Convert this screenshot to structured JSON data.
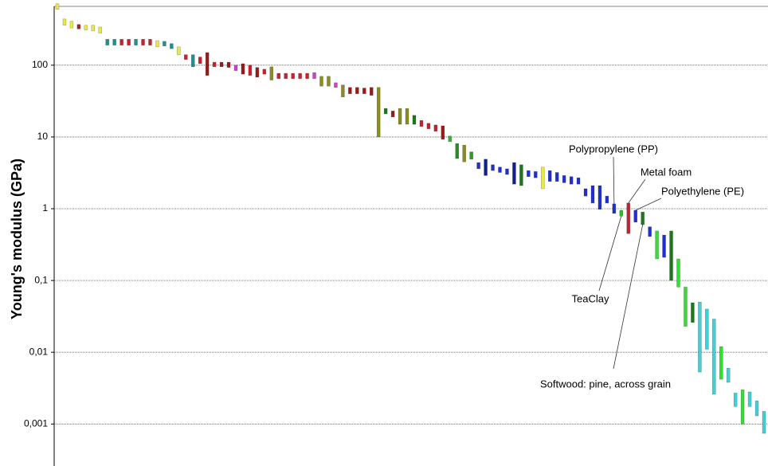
{
  "chart_data": {
    "type": "range_bar",
    "ylabel": "Young's modulus (GPa)",
    "log_y": true,
    "grid": true,
    "ylim": [
      0.00026,
      660
    ],
    "yticks": [
      {
        "value": 0.001,
        "label": "0,001"
      },
      {
        "value": 0.01,
        "label": "0,01"
      },
      {
        "value": 0.1,
        "label": "0,1"
      },
      1,
      10,
      100
    ],
    "bars": [
      {
        "low": 600,
        "high": 720,
        "color": "#e8e84a"
      },
      {
        "low": 360,
        "high": 440,
        "color": "#e8e84a"
      },
      {
        "low": 330,
        "high": 410,
        "color": "#e8e84a"
      },
      {
        "low": 320,
        "high": 370,
        "color": "#b01c24"
      },
      {
        "low": 310,
        "high": 360,
        "color": "#e8e84a"
      },
      {
        "low": 300,
        "high": 360,
        "color": "#e8e84a"
      },
      {
        "low": 280,
        "high": 340,
        "color": "#e8e84a"
      },
      {
        "low": 190,
        "high": 230,
        "color": "#1f9090"
      },
      {
        "low": 190,
        "high": 230,
        "color": "#1f9090"
      },
      {
        "low": 190,
        "high": 230,
        "color": "#c8202c"
      },
      {
        "low": 190,
        "high": 230,
        "color": "#c8202c"
      },
      {
        "low": 190,
        "high": 230,
        "color": "#1f9090"
      },
      {
        "low": 190,
        "high": 230,
        "color": "#c8202c"
      },
      {
        "low": 190,
        "high": 230,
        "color": "#c8202c"
      },
      {
        "low": 180,
        "high": 220,
        "color": "#e8e84a"
      },
      {
        "low": 185,
        "high": 215,
        "color": "#1f9090"
      },
      {
        "low": 170,
        "high": 200,
        "color": "#1f9090"
      },
      {
        "low": 140,
        "high": 180,
        "color": "#e8e84a"
      },
      {
        "low": 120,
        "high": 140,
        "color": "#c8202c"
      },
      {
        "low": 95,
        "high": 140,
        "color": "#1f9090"
      },
      {
        "low": 105,
        "high": 130,
        "color": "#c8202c"
      },
      {
        "low": 72,
        "high": 150,
        "color": "#9a1a1a"
      },
      {
        "low": 95,
        "high": 110,
        "color": "#c8202c"
      },
      {
        "low": 95,
        "high": 110,
        "color": "#9a1a1a"
      },
      {
        "low": 93,
        "high": 110,
        "color": "#9a1a1a"
      },
      {
        "low": 84,
        "high": 100,
        "color": "#d040c8"
      },
      {
        "low": 75,
        "high": 105,
        "color": "#9a1a1a"
      },
      {
        "low": 72,
        "high": 100,
        "color": "#c8202c"
      },
      {
        "low": 68,
        "high": 93,
        "color": "#9a1a1a"
      },
      {
        "low": 75,
        "high": 88,
        "color": "#c8202c"
      },
      {
        "low": 62,
        "high": 95,
        "color": "#8b8b20"
      },
      {
        "low": 65,
        "high": 77,
        "color": "#c8202c"
      },
      {
        "low": 65,
        "high": 77,
        "color": "#c8202c"
      },
      {
        "low": 65,
        "high": 77,
        "color": "#c8202c"
      },
      {
        "low": 65,
        "high": 77,
        "color": "#c8202c"
      },
      {
        "low": 65,
        "high": 77,
        "color": "#c8202c"
      },
      {
        "low": 65,
        "high": 79,
        "color": "#d040c8"
      },
      {
        "low": 51,
        "high": 70,
        "color": "#8b8b20"
      },
      {
        "low": 51,
        "high": 70,
        "color": "#8b8b20"
      },
      {
        "low": 49,
        "high": 57,
        "color": "#d040c8"
      },
      {
        "low": 36,
        "high": 53,
        "color": "#8b8b20"
      },
      {
        "low": 40,
        "high": 49,
        "color": "#9a1a1a"
      },
      {
        "low": 40,
        "high": 49,
        "color": "#9a1a1a"
      },
      {
        "low": 40,
        "high": 48,
        "color": "#9a1a1a"
      },
      {
        "low": 38,
        "high": 49,
        "color": "#9a1a1a"
      },
      {
        "low": 10,
        "high": 49,
        "color": "#8b8b20"
      },
      {
        "low": 21,
        "high": 25,
        "color": "#1a7a1a"
      },
      {
        "low": 19,
        "high": 23,
        "color": "#9a1a1a"
      },
      {
        "low": 15,
        "high": 25,
        "color": "#8b8b20"
      },
      {
        "low": 15,
        "high": 25,
        "color": "#8b8b20"
      },
      {
        "low": 15,
        "high": 20,
        "color": "#1a7a1a"
      },
      {
        "low": 14,
        "high": 17,
        "color": "#c8202c"
      },
      {
        "low": 13,
        "high": 15.5,
        "color": "#c8202c"
      },
      {
        "low": 12,
        "high": 14.7,
        "color": "#c8202c"
      },
      {
        "low": 9.3,
        "high": 14.3,
        "color": "#9a1a1a"
      },
      {
        "low": 8.6,
        "high": 10.3,
        "color": "#2db82d"
      },
      {
        "low": 5.0,
        "high": 8.1,
        "color": "#2a8a2a"
      },
      {
        "low": 4.5,
        "high": 7.7,
        "color": "#8b8b20"
      },
      {
        "low": 4.9,
        "high": 6.2,
        "color": "#2a9a2a"
      },
      {
        "low": 3.6,
        "high": 4.4,
        "color": "#1f2fd0"
      },
      {
        "low": 2.9,
        "high": 4.9,
        "color": "#14208a"
      },
      {
        "low": 3.4,
        "high": 4.1,
        "color": "#1f2fd0"
      },
      {
        "low": 3.2,
        "high": 3.8,
        "color": "#1f2fd0"
      },
      {
        "low": 3.0,
        "high": 3.6,
        "color": "#1f2fd0"
      },
      {
        "low": 2.2,
        "high": 4.4,
        "color": "#14208a"
      },
      {
        "low": 2.1,
        "high": 4.1,
        "color": "#1a7a1a"
      },
      {
        "low": 2.8,
        "high": 3.4,
        "color": "#1f2fd0"
      },
      {
        "low": 2.7,
        "high": 3.3,
        "color": "#1f2fd0"
      },
      {
        "low": 1.9,
        "high": 3.8,
        "color": "#e8e84a"
      },
      {
        "low": 2.4,
        "high": 3.4,
        "color": "#1f2fd0"
      },
      {
        "low": 2.4,
        "high": 3.2,
        "color": "#1f2fd0"
      },
      {
        "low": 2.3,
        "high": 2.9,
        "color": "#1f2fd0"
      },
      {
        "low": 2.2,
        "high": 2.8,
        "color": "#1f2fd0"
      },
      {
        "low": 2.2,
        "high": 2.7,
        "color": "#1f2fd0"
      },
      {
        "low": 1.5,
        "high": 1.9,
        "color": "#1f2fd0"
      },
      {
        "low": 1.2,
        "high": 2.1,
        "color": "#1f2fd0"
      },
      {
        "low": 0.98,
        "high": 2.1,
        "color": "#1f2fd0"
      },
      {
        "low": 1.2,
        "high": 1.5,
        "color": "#1f2fd0"
      },
      {
        "low": 0.86,
        "high": 1.17,
        "color": "#1f2fd0",
        "name": "Polypropylene (PP)"
      },
      {
        "low": 0.79,
        "high": 0.95,
        "color": "#2db82d",
        "name": "TeaClay"
      },
      {
        "low": 0.45,
        "high": 1.2,
        "color": "#c8202c",
        "name": "Metal foam"
      },
      {
        "low": 0.65,
        "high": 0.95,
        "color": "#1f2fd0",
        "name": "Polyethylene (PE)"
      },
      {
        "low": 0.6,
        "high": 0.9,
        "color": "#1a7a1a",
        "name": "Softwood: pine, across grain"
      },
      {
        "low": 0.41,
        "high": 0.56,
        "color": "#1f2fd0"
      },
      {
        "low": 0.2,
        "high": 0.49,
        "color": "#33dd33"
      },
      {
        "low": 0.21,
        "high": 0.43,
        "color": "#1f2fd0"
      },
      {
        "low": 0.1,
        "high": 0.49,
        "color": "#1a7a1a"
      },
      {
        "low": 0.081,
        "high": 0.2,
        "color": "#33dd33"
      },
      {
        "low": 0.023,
        "high": 0.081,
        "color": "#33dd33"
      },
      {
        "low": 0.026,
        "high": 0.049,
        "color": "#1a7a1a"
      },
      {
        "low": 0.0053,
        "high": 0.05,
        "color": "#40d0d8"
      },
      {
        "low": 0.011,
        "high": 0.04,
        "color": "#40d0d8"
      },
      {
        "low": 0.0026,
        "high": 0.029,
        "color": "#40d0d8"
      },
      {
        "low": 0.0042,
        "high": 0.012,
        "color": "#33dd33"
      },
      {
        "low": 0.0038,
        "high": 0.006,
        "color": "#40d0d8"
      },
      {
        "low": 0.00175,
        "high": 0.0027,
        "color": "#40d0d8"
      },
      {
        "low": 0.001,
        "high": 0.003,
        "color": "#33dd33"
      },
      {
        "low": 0.00175,
        "high": 0.0028,
        "color": "#40d0d8"
      },
      {
        "low": 0.0013,
        "high": 0.0021,
        "color": "#40d0d8"
      },
      {
        "low": 0.00074,
        "high": 0.0015,
        "color": "#40d0d8"
      }
    ]
  }
}
